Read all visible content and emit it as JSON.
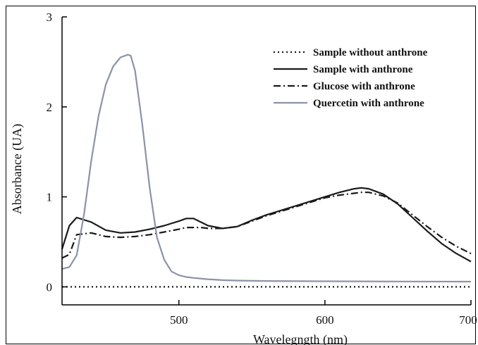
{
  "chart_data": {
    "type": "line",
    "title": "",
    "xlabel": "Wavelegngth (nm)",
    "ylabel": "Absorbance (UA)",
    "xlim": [
      420,
      700
    ],
    "ylim": [
      -0.2,
      3
    ],
    "x_ticks": [
      500,
      600,
      700
    ],
    "x_tick_labels": [
      "500",
      "600",
      "700"
    ],
    "y_ticks": [
      0,
      1,
      2,
      3
    ],
    "y_tick_labels": [
      "0",
      "1",
      "2",
      "3"
    ],
    "grid": false,
    "legend_position": "top-right",
    "series": [
      {
        "name": "Sample without anthrone",
        "style": "dotted",
        "color": "#1a1a1a",
        "x": [
          420,
          450,
          500,
          550,
          600,
          650,
          700
        ],
        "y": [
          0,
          0,
          0,
          0,
          0,
          0,
          0
        ]
      },
      {
        "name": "Sample with anthrone",
        "style": "solid",
        "color": "#1a1a1a",
        "x": [
          420,
          425,
          430,
          440,
          450,
          460,
          470,
          480,
          490,
          500,
          505,
          510,
          515,
          520,
          530,
          540,
          550,
          560,
          580,
          600,
          610,
          620,
          625,
          630,
          640,
          650,
          660,
          670,
          680,
          690,
          700
        ],
        "y": [
          0.42,
          0.68,
          0.77,
          0.72,
          0.63,
          0.6,
          0.61,
          0.64,
          0.68,
          0.73,
          0.76,
          0.76,
          0.72,
          0.68,
          0.65,
          0.67,
          0.74,
          0.8,
          0.9,
          1.0,
          1.05,
          1.09,
          1.1,
          1.09,
          1.03,
          0.92,
          0.77,
          0.62,
          0.48,
          0.37,
          0.28
        ]
      },
      {
        "name": "Glucose with anthrone",
        "style": "dash-dot",
        "color": "#1a1a1a",
        "x": [
          420,
          425,
          430,
          440,
          450,
          460,
          470,
          480,
          490,
          500,
          505,
          510,
          515,
          520,
          530,
          540,
          550,
          560,
          580,
          600,
          610,
          620,
          625,
          630,
          640,
          650,
          660,
          670,
          680,
          690,
          700
        ],
        "y": [
          0.32,
          0.36,
          0.58,
          0.6,
          0.56,
          0.55,
          0.56,
          0.58,
          0.61,
          0.64,
          0.66,
          0.66,
          0.66,
          0.65,
          0.65,
          0.67,
          0.73,
          0.79,
          0.89,
          0.99,
          1.02,
          1.04,
          1.05,
          1.05,
          1.01,
          0.93,
          0.8,
          0.67,
          0.55,
          0.45,
          0.37
        ]
      },
      {
        "name": "Quercetin with anthrone",
        "style": "solid",
        "color": "#8a93a8",
        "x": [
          420,
          425,
          430,
          435,
          440,
          445,
          450,
          455,
          460,
          465,
          467,
          470,
          475,
          480,
          485,
          490,
          495,
          500,
          505,
          510,
          520,
          530,
          540,
          560,
          600,
          650,
          700
        ],
        "y": [
          0.2,
          0.22,
          0.35,
          0.8,
          1.4,
          1.9,
          2.25,
          2.45,
          2.55,
          2.58,
          2.57,
          2.4,
          1.8,
          1.1,
          0.55,
          0.3,
          0.17,
          0.13,
          0.11,
          0.1,
          0.085,
          0.075,
          0.07,
          0.065,
          0.062,
          0.06,
          0.058
        ]
      }
    ]
  }
}
